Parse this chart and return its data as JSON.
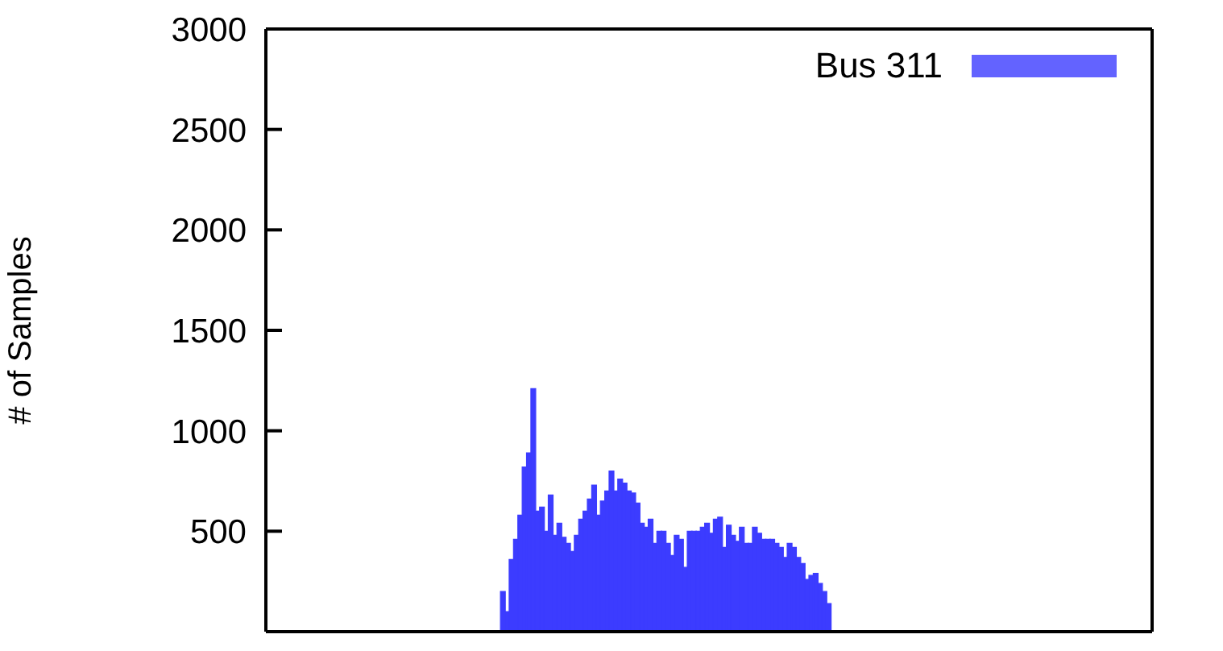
{
  "chart_data": {
    "type": "bar",
    "ylabel": "# of Samples",
    "legend": "top right",
    "tick_labels": "y",
    "categories": [
      null,
      null,
      null,
      null,
      null,
      null,
      null,
      null,
      null,
      null,
      null,
      null,
      null,
      null,
      null,
      null,
      null,
      null,
      null,
      null,
      null,
      null,
      null,
      null,
      null,
      null,
      null,
      null,
      null,
      null,
      null,
      null,
      null,
      null,
      null,
      null,
      null,
      null,
      null,
      null,
      null,
      null,
      null,
      null,
      null,
      null,
      null,
      null,
      null,
      null,
      null,
      null,
      null,
      null,
      null,
      null,
      null,
      null,
      null,
      null,
      null,
      null,
      null,
      null,
      null,
      null,
      null,
      null,
      null,
      null,
      null,
      null,
      null,
      null,
      null,
      null,
      null,
      null,
      null,
      null,
      null,
      null,
      null,
      null,
      null,
      null,
      null,
      null,
      null,
      null,
      null,
      null,
      null,
      null,
      null,
      null,
      null,
      null,
      null,
      null,
      null,
      null,
      null,
      null,
      null,
      null,
      null,
      null,
      null,
      null,
      null,
      null,
      null,
      null,
      null,
      null,
      null,
      null,
      null,
      null,
      null,
      null,
      null,
      null,
      null,
      null,
      null,
      null,
      null,
      null,
      null,
      null,
      null,
      null,
      null,
      null,
      null,
      null,
      null,
      null,
      null,
      null,
      null,
      null,
      null,
      null,
      null,
      null,
      null,
      null,
      null,
      null,
      null,
      null,
      null,
      null,
      null,
      null,
      null,
      null,
      null,
      null,
      null,
      null,
      null,
      null,
      null,
      null,
      null,
      null,
      null,
      null,
      null,
      null,
      null,
      null,
      null,
      null,
      null,
      null,
      null,
      null,
      null,
      null,
      null,
      null,
      null,
      null,
      null,
      null,
      null,
      null,
      null,
      null,
      null,
      null,
      null,
      null,
      null,
      null,
      null,
      null,
      null,
      null
    ],
    "series": [
      {
        "name": "Bus 311",
        "color": "#3c3cff",
        "values": [
          null,
          null,
          null,
          null,
          null,
          null,
          null,
          null,
          null,
          null,
          null,
          null,
          null,
          null,
          null,
          null,
          null,
          null,
          null,
          null,
          null,
          null,
          null,
          null,
          null,
          null,
          null,
          null,
          null,
          null,
          null,
          null,
          null,
          null,
          null,
          null,
          null,
          null,
          null,
          null,
          null,
          null,
          null,
          null,
          null,
          null,
          null,
          null,
          null,
          null,
          null,
          null,
          null,
          null,
          200,
          100,
          360,
          460,
          580,
          820,
          890,
          1210,
          600,
          620,
          500,
          680,
          480,
          540,
          470,
          440,
          400,
          480,
          560,
          600,
          660,
          730,
          580,
          650,
          700,
          800,
          700,
          760,
          740,
          700,
          690,
          640,
          540,
          520,
          560,
          440,
          500,
          500,
          440,
          380,
          480,
          460,
          320,
          500,
          500,
          500,
          520,
          540,
          490,
          560,
          570,
          420,
          530,
          480,
          450,
          520,
          440,
          440,
          520,
          490,
          460,
          460,
          460,
          440,
          420,
          370,
          440,
          420,
          370,
          340,
          260,
          280,
          290,
          240,
          200,
          140,
          null,
          null,
          null,
          null,
          null,
          null,
          null,
          null,
          null,
          null,
          null,
          null,
          null,
          null,
          null,
          null,
          null,
          null,
          null,
          null,
          null,
          null,
          null,
          null,
          null,
          null,
          null,
          null,
          null,
          null,
          null,
          null,
          null,
          null,
          null,
          null,
          null,
          null,
          null,
          null,
          null,
          null,
          null,
          null,
          null,
          null,
          null,
          null,
          null,
          null,
          null,
          null,
          null,
          null,
          null,
          null,
          null,
          null,
          null,
          null,
          null,
          null,
          null,
          null,
          null,
          null,
          null,
          null,
          null,
          null,
          null,
          null,
          null,
          null
        ]
      }
    ],
    "ylim": [
      0,
      3000
    ],
    "yticks": [
      500,
      1000,
      1500,
      2000,
      2500,
      3000
    ]
  }
}
